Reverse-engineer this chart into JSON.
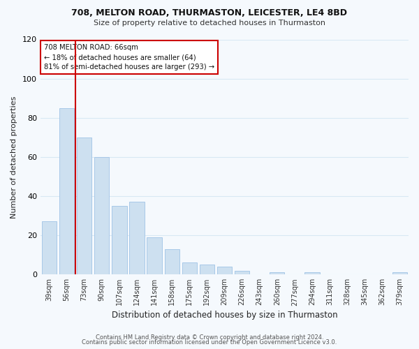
{
  "title1": "708, MELTON ROAD, THURMASTON, LEICESTER, LE4 8BD",
  "title2": "Size of property relative to detached houses in Thurmaston",
  "xlabel": "Distribution of detached houses by size in Thurmaston",
  "ylabel": "Number of detached properties",
  "bar_labels": [
    "39sqm",
    "56sqm",
    "73sqm",
    "90sqm",
    "107sqm",
    "124sqm",
    "141sqm",
    "158sqm",
    "175sqm",
    "192sqm",
    "209sqm",
    "226sqm",
    "243sqm",
    "260sqm",
    "277sqm",
    "294sqm",
    "311sqm",
    "328sqm",
    "345sqm",
    "362sqm",
    "379sqm"
  ],
  "bar_values": [
    27,
    85,
    70,
    60,
    35,
    37,
    19,
    13,
    6,
    5,
    4,
    2,
    0,
    1,
    0,
    1,
    0,
    0,
    0,
    0,
    1
  ],
  "bar_color": "#cde0f0",
  "bar_edge_color": "#a8c8e8",
  "ylim": [
    0,
    120
  ],
  "yticks": [
    0,
    20,
    40,
    60,
    80,
    100,
    120
  ],
  "property_line_label": "708 MELTON ROAD: 66sqm",
  "annotation_line1": "← 18% of detached houses are smaller (64)",
  "annotation_line2": "81% of semi-detached houses are larger (293) →",
  "footer1": "Contains HM Land Registry data © Crown copyright and database right 2024.",
  "footer2": "Contains public sector information licensed under the Open Government Licence v3.0.",
  "grid_color": "#d8e8f4",
  "line_color": "#cc0000",
  "bg_color": "#f5f9fd",
  "annotation_box_color": "#cc0000"
}
